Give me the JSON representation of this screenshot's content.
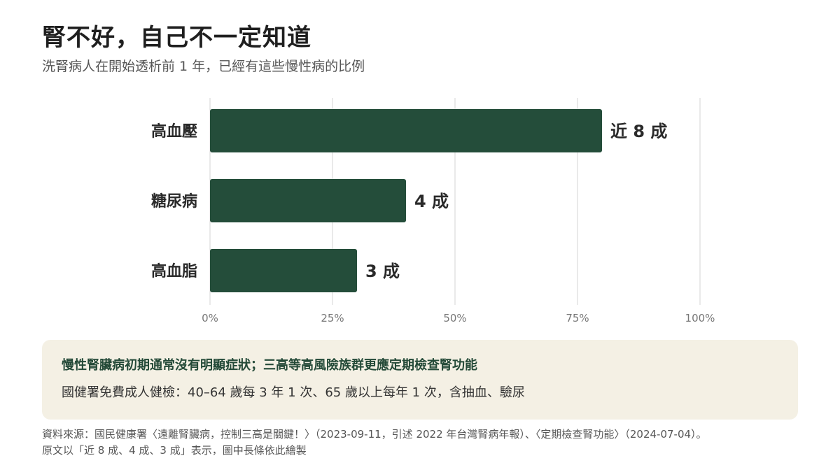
{
  "title": "腎不好，自己不一定知道",
  "subtitle": "洗腎病人在開始透析前 1 年，已經有這些慢性病的比例",
  "chart_data": {
    "type": "bar",
    "orientation": "horizontal",
    "title": "",
    "xlabel": "",
    "ylabel": "",
    "categories": [
      "高血壓",
      "糖尿病",
      "高血脂"
    ],
    "values": [
      80,
      40,
      30
    ],
    "value_labels": [
      "近 8 成",
      "4 成",
      "3 成"
    ],
    "xlim": [
      0,
      100
    ],
    "x_ticks": [
      0,
      25,
      50,
      75,
      100
    ],
    "x_tick_labels": [
      "0%",
      "25%",
      "50%",
      "75%",
      "100%"
    ],
    "grid": "vertical",
    "legend": "none",
    "bar_color": "#244d3a"
  },
  "callout": {
    "headline": "慢性腎臟病初期通常沒有明顯症狀；三高等高風險族群更應定期檢查腎功能",
    "body": "國健署免費成人健檢：40–64 歲每 3 年 1 次、65 歲以上每年 1 次，含抽血、驗尿"
  },
  "source": {
    "line1": "資料來源：國民健康署〈遠離腎臟病，控制三高是關鍵！〉（2023-09-11，引述 2022 年台灣腎病年報）、〈定期檢查腎功能〉（2024-07-04）。",
    "line2": "原文以「近 8 成、4 成、3 成」表示，圖中長條依此繪製"
  },
  "colors": {
    "bar": "#244d3a",
    "callout_bg": "#f4f0e4",
    "callout_headline": "#244a38",
    "grid": "#e3e3e3"
  }
}
